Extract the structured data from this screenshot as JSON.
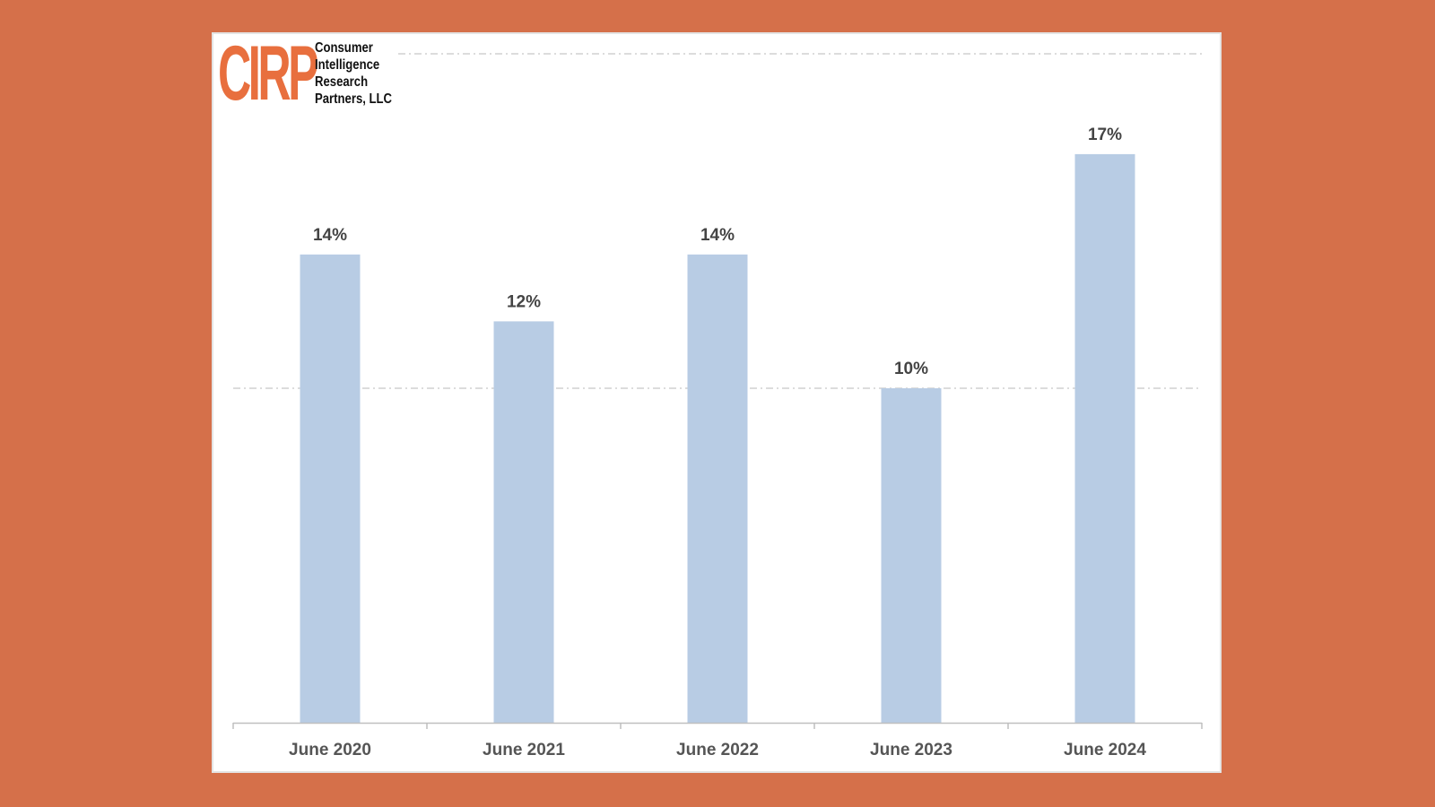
{
  "logo": {
    "mark": "CIRP",
    "lines": [
      "Consumer",
      "Intelligence",
      "Research",
      "Partners, LLC"
    ]
  },
  "colors": {
    "background": "#D5704A",
    "bar": "#B8CCE4",
    "logo_mark": "#E86F3E",
    "gridline": "#D0D0D0"
  },
  "chart_data": {
    "type": "bar",
    "categories": [
      "June 2020",
      "June 2021",
      "June 2022",
      "June 2023",
      "June 2024"
    ],
    "values": [
      14,
      12,
      14,
      10,
      17
    ],
    "data_labels": [
      "14%",
      "12%",
      "14%",
      "10%",
      "17%"
    ],
    "title": "",
    "xlabel": "",
    "ylabel": "",
    "ylim": [
      0,
      20
    ],
    "gridlines": [
      10,
      20
    ],
    "legend": "none"
  }
}
